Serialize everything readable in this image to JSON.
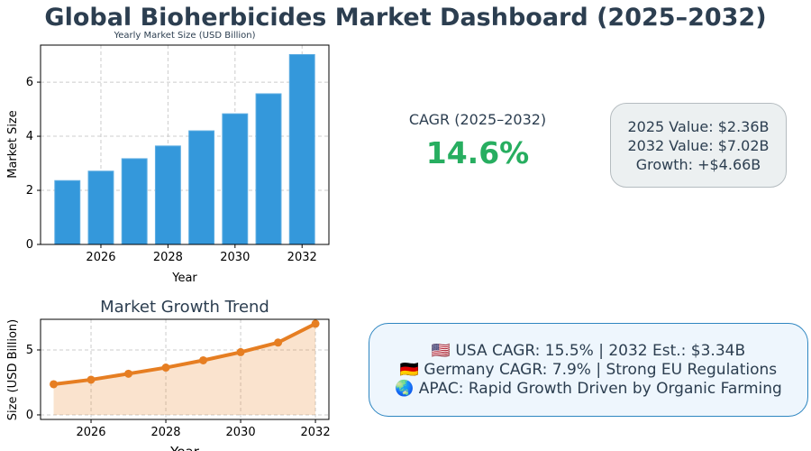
{
  "title": "Global Bioherbicides Market Dashboard (2025–2032)",
  "cagr": {
    "label": "CAGR (2025–2032)",
    "value": "14.6%",
    "color": "#27ae60"
  },
  "summary": {
    "lines": [
      "2025 Value: $2.36B",
      "2032 Value: $7.02B",
      "Growth: +$4.66B"
    ]
  },
  "regions": {
    "lines": [
      "🇺🇸 USA CAGR: 15.5% | 2032 Est.: $3.34B",
      "🇩🇪 Germany CAGR: 7.9% | Strong EU Regulations",
      "🌏 APAC: Rapid Growth Driven by Organic Farming"
    ]
  },
  "chart_data": [
    {
      "type": "bar",
      "title": "Yearly Market Size (USD Billion)",
      "xlabel": "Year",
      "ylabel": "Market Size",
      "x": [
        2025,
        2026,
        2027,
        2028,
        2029,
        2030,
        2031,
        2032
      ],
      "values": [
        2.36,
        2.71,
        3.17,
        3.64,
        4.2,
        4.83,
        5.57,
        7.02
      ],
      "xticks": [
        2026,
        2028,
        2030,
        2032
      ],
      "yticks": [
        0,
        2,
        4,
        6
      ],
      "xlim": [
        2024.2,
        2032.8
      ],
      "ylim": [
        0,
        7.37
      ],
      "grid": true,
      "color": "#3498db"
    },
    {
      "type": "area",
      "title": "Market Growth Trend",
      "xlabel": "Year",
      "ylabel": "Size (USD Billion)",
      "x": [
        2025,
        2026,
        2027,
        2028,
        2029,
        2030,
        2031,
        2032
      ],
      "values": [
        2.36,
        2.71,
        3.17,
        3.64,
        4.2,
        4.83,
        5.57,
        7.02
      ],
      "xticks": [
        2026,
        2028,
        2030,
        2032
      ],
      "yticks": [
        0,
        5
      ],
      "xlim": [
        2024.65,
        2032.36
      ],
      "ylim": [
        -0.35,
        7.36
      ],
      "grid": true,
      "color": "#e67e22"
    }
  ]
}
